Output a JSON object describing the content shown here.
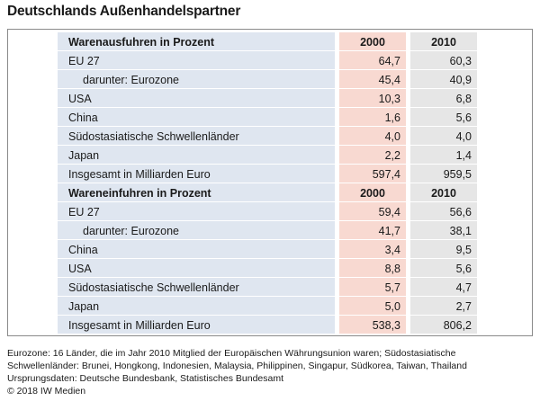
{
  "title": "Deutschlands Außenhandelspartner",
  "chart_data": {
    "type": "table",
    "columns": [
      "2000",
      "2010"
    ],
    "sections": [
      {
        "header": "Warenausfuhren in Prozent",
        "col_2000": "2000",
        "col_2010": "2010",
        "rows": [
          {
            "label": "EU 27",
            "indent": false,
            "v2000": "64,7",
            "v2010": "60,3"
          },
          {
            "label": "darunter: Eurozone",
            "indent": true,
            "v2000": "45,4",
            "v2010": "40,9"
          },
          {
            "label": "USA",
            "indent": false,
            "v2000": "10,3",
            "v2010": "6,8"
          },
          {
            "label": "China",
            "indent": false,
            "v2000": "1,6",
            "v2010": "5,6"
          },
          {
            "label": "Südostasiatische Schwellenländer",
            "indent": false,
            "v2000": "4,0",
            "v2010": "4,0"
          },
          {
            "label": "Japan",
            "indent": false,
            "v2000": "2,2",
            "v2010": "1,4"
          },
          {
            "label": "Insgesamt in Milliarden Euro",
            "indent": false,
            "v2000": "597,4",
            "v2010": "959,5"
          }
        ]
      },
      {
        "header": "Wareneinfuhren in Prozent",
        "col_2000": "2000",
        "col_2010": "2010",
        "rows": [
          {
            "label": "EU 27",
            "indent": false,
            "v2000": "59,4",
            "v2010": "56,6"
          },
          {
            "label": "darunter: Eurozone",
            "indent": true,
            "v2000": "41,7",
            "v2010": "38,1"
          },
          {
            "label": "China",
            "indent": false,
            "v2000": "3,4",
            "v2010": "9,5"
          },
          {
            "label": "USA",
            "indent": false,
            "v2000": "8,8",
            "v2010": "5,6"
          },
          {
            "label": "Südostasiatische Schwellenländer",
            "indent": false,
            "v2000": "5,7",
            "v2010": "4,7"
          },
          {
            "label": "Japan",
            "indent": false,
            "v2000": "5,0",
            "v2010": "2,7"
          },
          {
            "label": "Insgesamt in Milliarden Euro",
            "indent": false,
            "v2000": "538,3",
            "v2010": "806,2"
          }
        ]
      }
    ]
  },
  "footer": {
    "line1": "Eurozone: 16 Länder, die im Jahr 2010 Mitglied der Europäischen Währungsunion waren; Südostasiatische",
    "line2": "Schwellenländer: Brunei, Hongkong, Indonesien, Malaysia, Philippinen, Singapur, Südkorea, Taiwan, Thailand",
    "line3": "Ursprungsdaten: Deutsche Bundesbank, Statistisches Bundesamt",
    "line4": "© 2018 IW Medien"
  },
  "colors": {
    "label_column": "#dfe6f0",
    "col_2000": "#f8d9d1",
    "col_2010": "#e6e6e6"
  }
}
